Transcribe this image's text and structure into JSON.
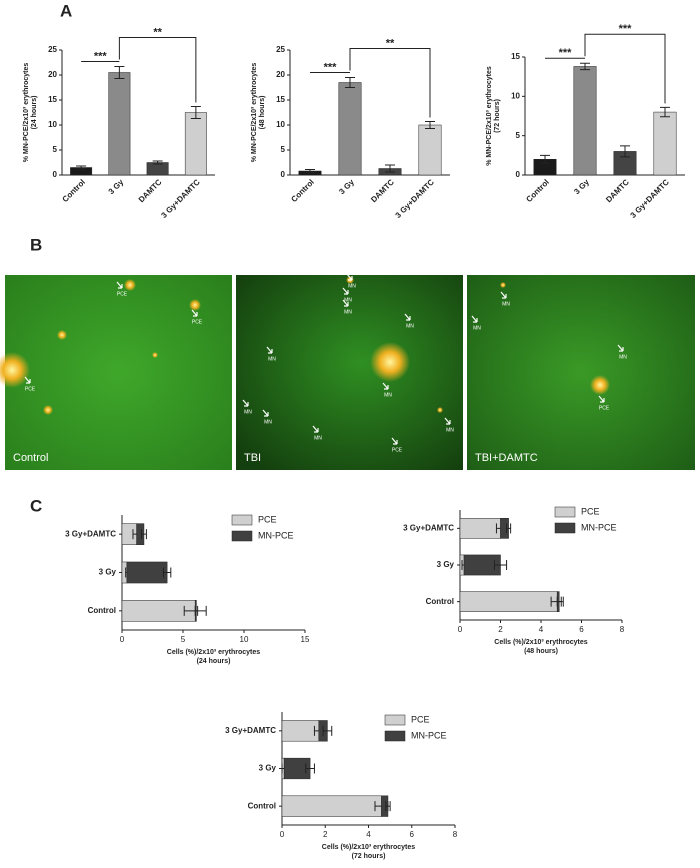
{
  "panel_labels": [
    "A",
    "B",
    "C"
  ],
  "chart_data": [
    {
      "type": "bar",
      "ylabel": [
        "% MN-PCE/2x10³ erythrocytes",
        "(24 hours)"
      ],
      "categories": [
        "Control",
        "3 Gy",
        "DAMTC",
        "3 Gy+DAMTC"
      ],
      "values": [
        1.5,
        20.5,
        2.5,
        12.5
      ],
      "errors": [
        0.3,
        1.2,
        0.3,
        1.2
      ],
      "colors": [
        "#1a1a1a",
        "#8a8a8a",
        "#444444",
        "#cfcfcf"
      ],
      "ylim": [
        0,
        25
      ],
      "yticks": [
        0,
        5,
        10,
        15,
        20,
        25
      ],
      "annotations": [
        "***",
        "**"
      ]
    },
    {
      "type": "bar",
      "ylabel": [
        "% MN-PCE/2x10³ erythrocytes",
        "(48 hours)"
      ],
      "categories": [
        "Control",
        "3 Gy",
        "DAMTC",
        "3 Gy+DAMTC"
      ],
      "values": [
        0.8,
        18.5,
        1.3,
        10
      ],
      "errors": [
        0.3,
        1,
        0.7,
        0.7
      ],
      "colors": [
        "#1a1a1a",
        "#8a8a8a",
        "#444444",
        "#cfcfcf"
      ],
      "ylim": [
        0,
        25
      ],
      "yticks": [
        0,
        5,
        10,
        15,
        20,
        25
      ],
      "annotations": [
        "***",
        "**"
      ]
    },
    {
      "type": "bar",
      "ylabel": [
        "% MN-PCE/2x10³ erythrocytes",
        "(72 hours)"
      ],
      "categories": [
        "Control",
        "3 Gy",
        "DAMTC",
        "3 Gy+DAMTC"
      ],
      "values": [
        2,
        13.8,
        3,
        8
      ],
      "errors": [
        0.5,
        0.4,
        0.7,
        0.6
      ],
      "colors": [
        "#1a1a1a",
        "#8a8a8a",
        "#444444",
        "#cfcfcf"
      ],
      "ylim": [
        0,
        15
      ],
      "yticks": [
        0,
        5,
        10,
        15
      ],
      "annotations": [
        "***",
        "***"
      ]
    },
    {
      "type": "hbar",
      "xlabel": [
        "Cells (%)/2x10³ erythrocytes",
        "(24 hours)"
      ],
      "categories": [
        "Control",
        "3 Gy",
        "3 Gy+DAMTC"
      ],
      "series": [
        {
          "name": "PCE",
          "color": "#d0d0d0",
          "values": [
            6,
            0.4,
            1.2
          ],
          "errors": [
            0.9,
            0.1,
            0.3
          ]
        },
        {
          "name": "MN-PCE",
          "color": "#404040",
          "values": [
            0.1,
            3.3,
            0.6
          ],
          "errors": [
            0.1,
            0.3,
            0.2
          ]
        }
      ],
      "xlim": [
        0,
        15
      ],
      "xticks": [
        0,
        5,
        10,
        15
      ]
    },
    {
      "type": "hbar",
      "xlabel": [
        "Cells (%)/2x10³ erythrocytes",
        "(48 hours)"
      ],
      "categories": [
        "Control",
        "3 Gy",
        "3 Gy+DAMTC"
      ],
      "series": [
        {
          "name": "PCE",
          "color": "#d0d0d0",
          "values": [
            4.8,
            0.2,
            2.0
          ],
          "errors": [
            0.3,
            0.1,
            0.2
          ]
        },
        {
          "name": "MN-PCE",
          "color": "#404040",
          "values": [
            0.1,
            1.8,
            0.4
          ],
          "errors": [
            0.1,
            0.3,
            0.1
          ]
        }
      ],
      "xlim": [
        0,
        8
      ],
      "xticks": [
        0,
        2,
        4,
        6,
        8
      ]
    },
    {
      "type": "hbar",
      "xlabel": [
        "Cells (%)/2x10³ erythrocytes",
        "(72 hours)"
      ],
      "categories": [
        "Control",
        "3 Gy",
        "3 Gy+DAMTC"
      ],
      "series": [
        {
          "name": "PCE",
          "color": "#d0d0d0",
          "values": [
            4.6,
            0.1,
            1.7
          ],
          "errors": [
            0.3,
            0.1,
            0.2
          ]
        },
        {
          "name": "MN-PCE",
          "color": "#404040",
          "values": [
            0.3,
            1.2,
            0.4
          ],
          "errors": [
            0.1,
            0.2,
            0.2
          ]
        }
      ],
      "xlim": [
        0,
        8
      ],
      "xticks": [
        0,
        2,
        4,
        6,
        8
      ]
    }
  ],
  "micrographs": [
    {
      "label": "Control",
      "annotations": [
        "PCE",
        "PCE",
        "PCE"
      ]
    },
    {
      "label": "TBI",
      "annotations": [
        "MN",
        "MN",
        "MN",
        "MN",
        "MN",
        "MN",
        "MN",
        "MN",
        "MN",
        "MN",
        "PCE"
      ]
    },
    {
      "label": "TBI+DAMTC",
      "annotations": [
        "MN",
        "MN",
        "MN",
        "PCE"
      ]
    }
  ]
}
